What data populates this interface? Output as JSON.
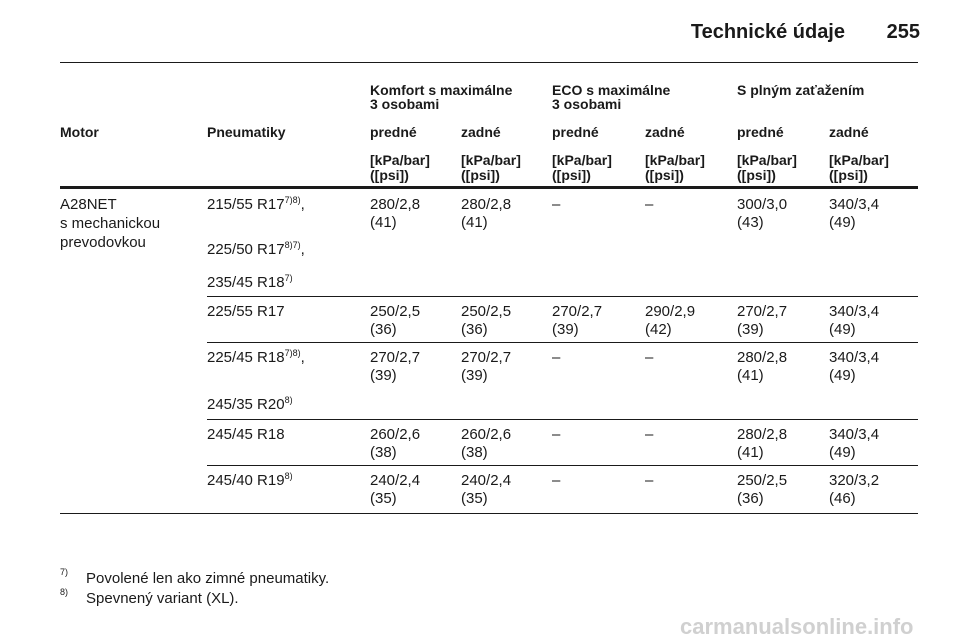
{
  "header": {
    "title": "Technické údaje",
    "page": "255"
  },
  "table": {
    "group_headers": [
      [
        "Komfort s maximálne",
        "3 osobami"
      ],
      [
        "ECO s maximálne",
        "3 osobami"
      ],
      [
        "S plným zaťažením"
      ]
    ],
    "columns": [
      "Motor",
      "Pneumatiky",
      "predné",
      "zadné",
      "predné",
      "zadné",
      "predné",
      "zadné"
    ],
    "units": [
      [
        "[kPa/bar]",
        "([psi])"
      ],
      [
        "[kPa/bar]",
        "([psi])"
      ],
      [
        "[kPa/bar]",
        "([psi])"
      ],
      [
        "[kPa/bar]",
        "([psi])"
      ],
      [
        "[kPa/bar]",
        "([psi])"
      ],
      [
        "[kPa/bar]",
        "([psi])"
      ]
    ],
    "rows": [
      {
        "motor": [
          "A28NET",
          "s mechanickou",
          "prevodovkou"
        ],
        "tires": [
          {
            "text": "215/55 R17",
            "sup": "7)8)",
            "suffix": ","
          },
          {
            "text": "225/50 R17",
            "sup": "8)7)",
            "suffix": ","
          },
          {
            "text": "235/45 R18",
            "sup": "7)"
          }
        ],
        "values": [
          [
            "280/2,8",
            "(41)"
          ],
          [
            "280/2,8",
            "(41)"
          ],
          [
            "–"
          ],
          [
            "–"
          ],
          [
            "300/3,0",
            "(43)"
          ],
          [
            "340/3,4",
            "(49)"
          ]
        ]
      },
      {
        "tires": [
          {
            "text": "225/55 R17"
          }
        ],
        "values": [
          [
            "250/2,5",
            "(36)"
          ],
          [
            "250/2,5",
            "(36)"
          ],
          [
            "270/2,7",
            "(39)"
          ],
          [
            "290/2,9",
            "(42)"
          ],
          [
            "270/2,7",
            "(39)"
          ],
          [
            "340/3,4",
            "(49)"
          ]
        ]
      },
      {
        "tires": [
          {
            "text": "225/45 R18",
            "sup": "7)8)",
            "suffix": ","
          },
          {
            "text": "245/35 R20",
            "sup": "8)"
          }
        ],
        "values": [
          [
            "270/2,7",
            "(39)"
          ],
          [
            "270/2,7",
            "(39)"
          ],
          [
            "–"
          ],
          [
            "–"
          ],
          [
            "280/2,8",
            "(41)"
          ],
          [
            "340/3,4",
            "(49)"
          ]
        ]
      },
      {
        "tires": [
          {
            "text": "245/45 R18"
          }
        ],
        "values": [
          [
            "260/2,6",
            "(38)"
          ],
          [
            "260/2,6",
            "(38)"
          ],
          [
            "–"
          ],
          [
            "–"
          ],
          [
            "280/2,8",
            "(41)"
          ],
          [
            "340/3,4",
            "(49)"
          ]
        ]
      },
      {
        "tires": [
          {
            "text": "245/40 R19",
            "sup": "8)"
          }
        ],
        "values": [
          [
            "240/2,4",
            "(35)"
          ],
          [
            "240/2,4",
            "(35)"
          ],
          [
            "–"
          ],
          [
            "–"
          ],
          [
            "250/2,5",
            "(36)"
          ],
          [
            "320/3,2",
            "(46)"
          ]
        ]
      }
    ]
  },
  "footnotes": [
    {
      "mark": "7)",
      "text": "Povolené len ako zimné pneumatiky."
    },
    {
      "mark": "8)",
      "text": "Spevnený variant (XL)."
    }
  ],
  "watermark": "carmanualsonline.info"
}
